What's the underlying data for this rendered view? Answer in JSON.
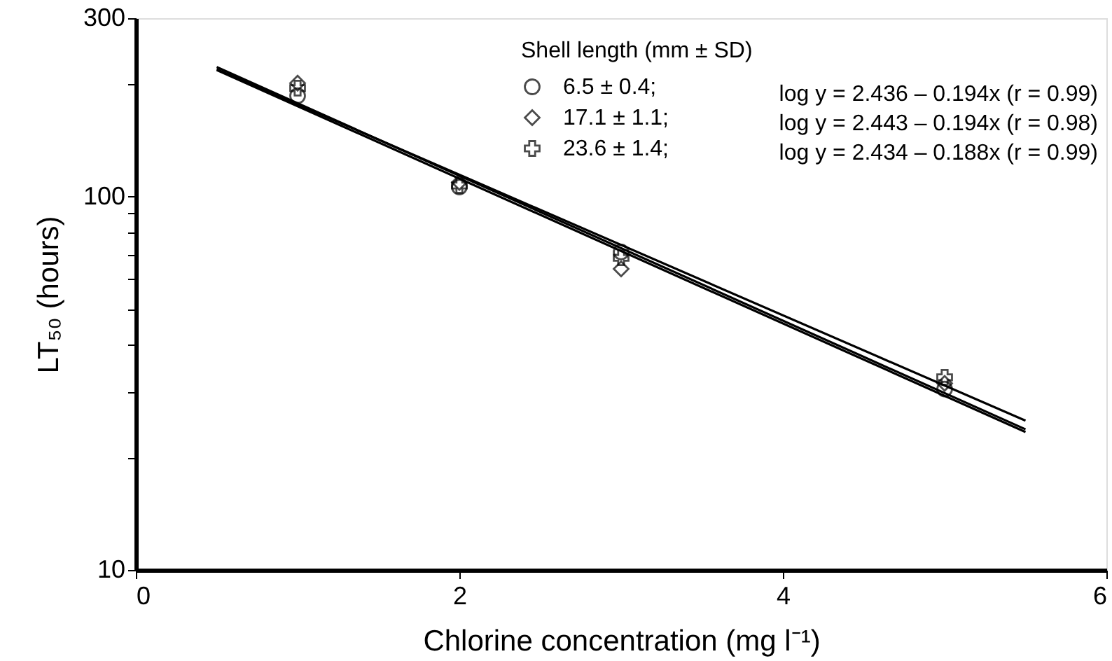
{
  "chart_data": {
    "type": "scatter",
    "xlabel": "Chlorine concentration (mg l⁻¹)",
    "ylabel": "LT₅₀ (hours)",
    "legend_title": "Shell length (mm ± SD)",
    "legend": "top right",
    "xlim": [
      0,
      6
    ],
    "xticks": [
      0,
      2,
      4,
      6
    ],
    "ylim": [
      10,
      300
    ],
    "log": true,
    "yticks": [
      10,
      {
        "value": 20,
        "label": null
      },
      {
        "value": 30,
        "label": null
      },
      {
        "value": 40,
        "label": null
      },
      {
        "value": 50,
        "label": null
      },
      {
        "value": 60,
        "label": null
      },
      {
        "value": 70,
        "label": null
      },
      {
        "value": 80,
        "label": null
      },
      {
        "value": 90,
        "label": null
      },
      100,
      {
        "value": 200,
        "label": null
      },
      300
    ],
    "grid": false,
    "series": [
      {
        "name": "6.5 ± 0.4;",
        "marker": "circle",
        "color": "#000000",
        "x": [
          1,
          2,
          3,
          5
        ],
        "values": [
          186,
          106,
          71,
          30.5
        ]
      },
      {
        "name": "17.1 ± 1.1;",
        "marker": "diamond",
        "color": "#000000",
        "x": [
          1,
          2,
          3,
          5
        ],
        "values": [
          201,
          109,
          64,
          31.6
        ]
      },
      {
        "name": "23.6 ± 1.4;",
        "marker": "cross",
        "color": "#000000",
        "x": [
          1,
          2,
          3,
          5
        ],
        "values": [
          195,
          107,
          68.5,
          32.8
        ]
      },
      {
        "type": "line",
        "line_style": "solid",
        "color": "#000000",
        "x": [
          0.5,
          5.5
        ],
        "values": [
          218,
          23.4
        ]
      },
      {
        "type": "line",
        "line_style": "solid",
        "color": "#000000",
        "x": [
          0.5,
          5.5
        ],
        "values": [
          222,
          23.8
        ]
      },
      {
        "type": "line",
        "line_style": "solid",
        "color": "#000000",
        "x": [
          0.5,
          5.5
        ],
        "values": [
          219,
          25.1
        ]
      }
    ],
    "annotations": [
      "log y = 2.436 – 0.194x (r = 0.99)",
      "log y = 2.443 – 0.194x (r = 0.98)",
      "log y = 2.434 – 0.188x (r = 0.99)"
    ]
  }
}
